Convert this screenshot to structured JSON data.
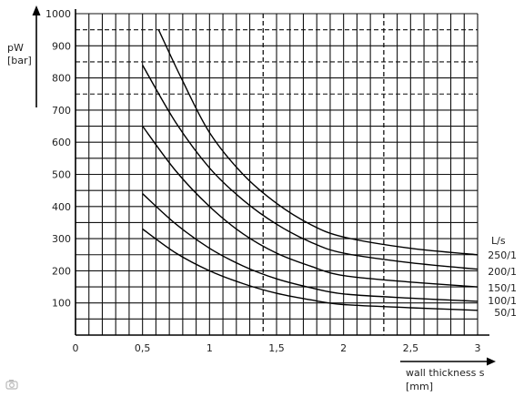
{
  "chart_data": {
    "type": "line",
    "title": "",
    "ylabel_line1": "pW",
    "ylabel_line2": "[bar]",
    "xlabel_line1": "wall thickness s",
    "xlabel_line2": "[mm]",
    "legend_title": "L/s",
    "xlim": [
      0,
      3
    ],
    "ylim": [
      0,
      1000
    ],
    "x_ticks": [
      {
        "v": 0,
        "label": "0"
      },
      {
        "v": 0.5,
        "label": "0,5"
      },
      {
        "v": 1,
        "label": "1"
      },
      {
        "v": 1.5,
        "label": "1,5"
      },
      {
        "v": 2,
        "label": "2"
      },
      {
        "v": 2.5,
        "label": "2,5"
      },
      {
        "v": 3,
        "label": "3"
      }
    ],
    "y_ticks": [
      {
        "v": 100,
        "label": "100"
      },
      {
        "v": 200,
        "label": "200"
      },
      {
        "v": 300,
        "label": "300"
      },
      {
        "v": 400,
        "label": "400"
      },
      {
        "v": 500,
        "label": "500"
      },
      {
        "v": 600,
        "label": "600"
      },
      {
        "v": 700,
        "label": "700"
      },
      {
        "v": 800,
        "label": "800"
      },
      {
        "v": 900,
        "label": "900"
      },
      {
        "v": 1000,
        "label": "1000"
      }
    ],
    "grid": true,
    "series": [
      {
        "name": "250/1",
        "x": [
          0.62,
          0.8,
          1.0,
          1.25,
          1.5,
          1.75,
          2.0,
          2.5,
          3.0
        ],
        "y": [
          950,
          790,
          630,
          500,
          410,
          345,
          305,
          270,
          250
        ]
      },
      {
        "name": "200/1",
        "x": [
          0.5,
          0.75,
          1.0,
          1.25,
          1.5,
          1.75,
          2.0,
          2.5,
          3.0
        ],
        "y": [
          840,
          660,
          520,
          420,
          345,
          290,
          255,
          225,
          205
        ]
      },
      {
        "name": "150/1",
        "x": [
          0.5,
          0.75,
          1.0,
          1.25,
          1.5,
          1.75,
          2.0,
          2.5,
          3.0
        ],
        "y": [
          650,
          510,
          400,
          315,
          255,
          215,
          185,
          165,
          150
        ]
      },
      {
        "name": "100/1",
        "x": [
          0.5,
          0.75,
          1.0,
          1.25,
          1.5,
          1.75,
          2.0,
          2.5,
          3.0
        ],
        "y": [
          440,
          345,
          270,
          215,
          175,
          148,
          128,
          115,
          105
        ]
      },
      {
        "name": "50/1",
        "x": [
          0.5,
          0.75,
          1.0,
          1.25,
          1.5,
          1.75,
          2.0,
          2.5,
          3.0
        ],
        "y": [
          330,
          255,
          200,
          160,
          130,
          110,
          95,
          85,
          77
        ]
      }
    ]
  },
  "watermark": {
    "icon": "camera-icon"
  }
}
